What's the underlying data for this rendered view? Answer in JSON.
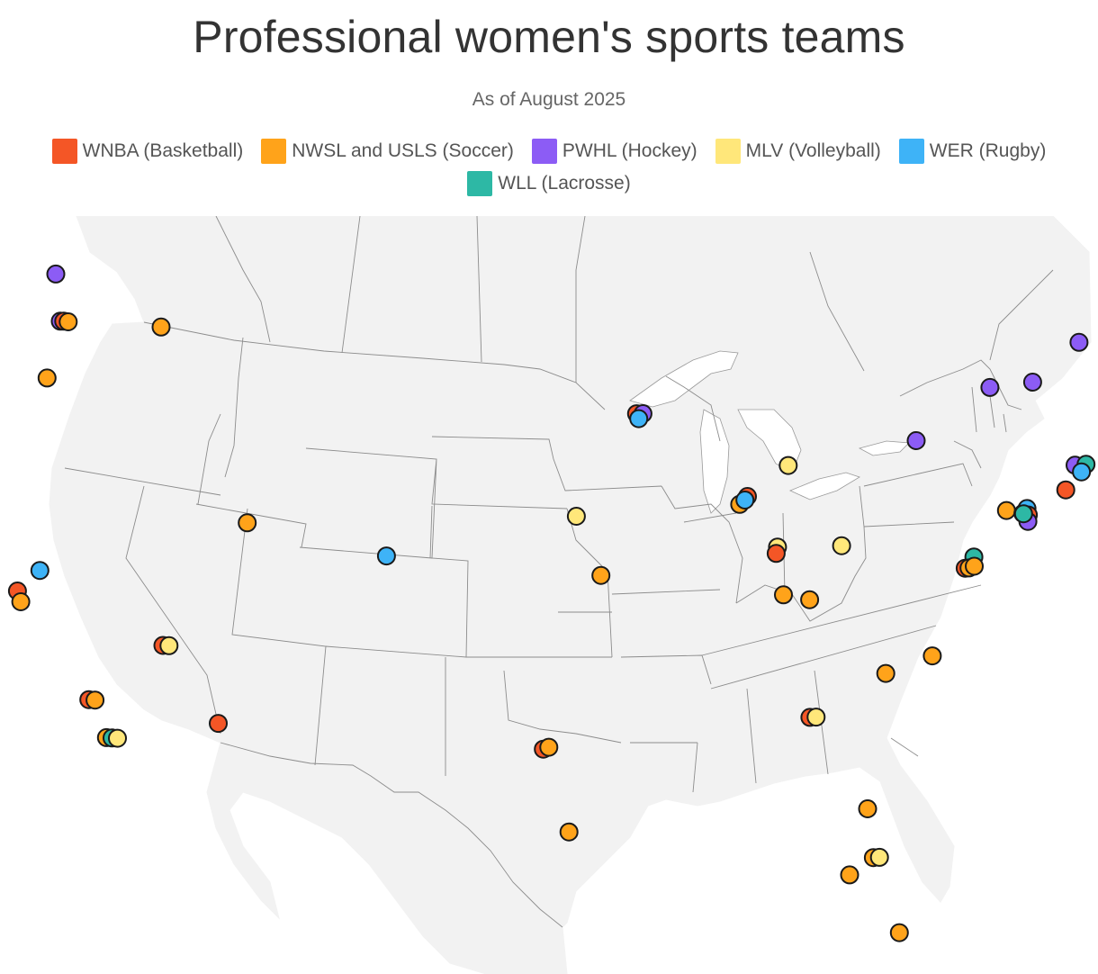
{
  "title": "Professional women's sports teams",
  "subtitle": "As of August 2025",
  "legend": [
    {
      "key": "wnba",
      "label": "WNBA (Basketball)",
      "color": "#f45626"
    },
    {
      "key": "soccer",
      "label": "NWSL and USLS (Soccer)",
      "color": "#ffa31a"
    },
    {
      "key": "pwhl",
      "label": "PWHL (Hockey)",
      "color": "#8c5cf5"
    },
    {
      "key": "mlv",
      "label": "MLV (Volleyball)",
      "color": "#ffe77a"
    },
    {
      "key": "wer",
      "label": "WER (Rugby)",
      "color": "#3eb3f7"
    },
    {
      "key": "wll",
      "label": "WLL (Lacrosse)",
      "color": "#2db8a5"
    }
  ],
  "teams": [
    {
      "league": "pwhl",
      "lon": -123.12,
      "lat": 49.28
    },
    {
      "league": "pwhl",
      "lon": -122.5,
      "lat": 47.6
    },
    {
      "league": "wnba",
      "lon": -122.33,
      "lat": 47.61
    },
    {
      "league": "soccer",
      "lon": -122.1,
      "lat": 47.6
    },
    {
      "league": "soccer",
      "lon": -117.43,
      "lat": 47.66
    },
    {
      "league": "soccer",
      "lon": -122.68,
      "lat": 45.52
    },
    {
      "league": "pwhl",
      "lon": -71.2,
      "lat": 46.81
    },
    {
      "league": "pwhl",
      "lon": -73.57,
      "lat": 45.5
    },
    {
      "league": "pwhl",
      "lon": -75.7,
      "lat": 45.42
    },
    {
      "league": "pwhl",
      "lon": -79.38,
      "lat": 43.65
    },
    {
      "league": "pwhl",
      "lon": -71.6,
      "lat": 42.36
    },
    {
      "league": "wll",
      "lon": -71.06,
      "lat": 42.36
    },
    {
      "league": "wer",
      "lon": -71.3,
      "lat": 42.1
    },
    {
      "league": "wnba",
      "lon": -72.09,
      "lat": 41.49
    },
    {
      "league": "wnba",
      "lon": -93.27,
      "lat": 44.98
    },
    {
      "league": "pwhl",
      "lon": -92.95,
      "lat": 44.98
    },
    {
      "league": "wer",
      "lon": -93.15,
      "lat": 44.8
    },
    {
      "league": "mlv",
      "lon": -85.67,
      "lat": 42.96
    },
    {
      "league": "wnba",
      "lon": -87.63,
      "lat": 41.88
    },
    {
      "league": "soccer",
      "lon": -88.0,
      "lat": 41.6
    },
    {
      "league": "wer",
      "lon": -87.75,
      "lat": 41.75
    },
    {
      "league": "mlv",
      "lon": -95.94,
      "lat": 41.26
    },
    {
      "league": "mlv",
      "lon": -86.1,
      "lat": 40.0
    },
    {
      "league": "wnba",
      "lon": -86.16,
      "lat": 39.77
    },
    {
      "league": "mlv",
      "lon": -83.0,
      "lat": 39.96
    },
    {
      "league": "soccer",
      "lon": -94.58,
      "lat": 39.1
    },
    {
      "league": "soccer",
      "lon": -85.76,
      "lat": 38.25
    },
    {
      "league": "soccer",
      "lon": -84.5,
      "lat": 38.04
    },
    {
      "league": "soccer",
      "lon": -75.0,
      "lat": 40.9
    },
    {
      "league": "soccer",
      "lon": -74.2,
      "lat": 40.75
    },
    {
      "league": "wer",
      "lon": -74.0,
      "lat": 40.92
    },
    {
      "league": "wnba",
      "lon": -73.94,
      "lat": 40.68
    },
    {
      "league": "pwhl",
      "lon": -73.97,
      "lat": 40.45
    },
    {
      "league": "wll",
      "lon": -74.17,
      "lat": 40.74
    },
    {
      "league": "wll",
      "lon": -76.61,
      "lat": 39.29
    },
    {
      "league": "wnba",
      "lon": -77.04,
      "lat": 38.9
    },
    {
      "league": "soccer",
      "lon": -76.85,
      "lat": 38.9
    },
    {
      "league": "soccer",
      "lon": -76.6,
      "lat": 38.95
    },
    {
      "league": "soccer",
      "lon": -78.64,
      "lat": 35.78
    },
    {
      "league": "soccer",
      "lon": -80.84,
      "lat": 35.23
    },
    {
      "league": "wnba",
      "lon": -84.39,
      "lat": 33.75
    },
    {
      "league": "mlv",
      "lon": -84.1,
      "lat": 33.75
    },
    {
      "league": "soccer",
      "lon": -81.66,
      "lat": 30.33
    },
    {
      "league": "soccer",
      "lon": -81.38,
      "lat": 28.54
    },
    {
      "league": "mlv",
      "lon": -81.1,
      "lat": 28.54
    },
    {
      "league": "soccer",
      "lon": -82.46,
      "lat": 27.95
    },
    {
      "league": "soccer",
      "lon": -80.19,
      "lat": 25.76
    },
    {
      "league": "soccer",
      "lon": -111.89,
      "lat": 40.76
    },
    {
      "league": "wer",
      "lon": -104.99,
      "lat": 39.74
    },
    {
      "league": "wnba",
      "lon": -122.39,
      "lat": 37.78
    },
    {
      "league": "soccer",
      "lon": -122.15,
      "lat": 37.4
    },
    {
      "league": "wer",
      "lon": -121.49,
      "lat": 38.58
    },
    {
      "league": "wnba",
      "lon": -115.14,
      "lat": 36.17
    },
    {
      "league": "mlv",
      "lon": -114.85,
      "lat": 36.17
    },
    {
      "league": "wnba",
      "lon": -118.24,
      "lat": 34.05
    },
    {
      "league": "soccer",
      "lon": -117.95,
      "lat": 34.05
    },
    {
      "league": "soccer",
      "lon": -117.16,
      "lat": 32.72
    },
    {
      "league": "wll",
      "lon": -116.9,
      "lat": 32.72
    },
    {
      "league": "mlv",
      "lon": -116.65,
      "lat": 32.72
    },
    {
      "league": "wnba",
      "lon": -112.07,
      "lat": 33.45
    },
    {
      "league": "wnba",
      "lon": -96.8,
      "lat": 32.78
    },
    {
      "league": "soccer",
      "lon": -96.55,
      "lat": 32.85
    },
    {
      "league": "soccer",
      "lon": -95.37,
      "lat": 29.76
    }
  ]
}
